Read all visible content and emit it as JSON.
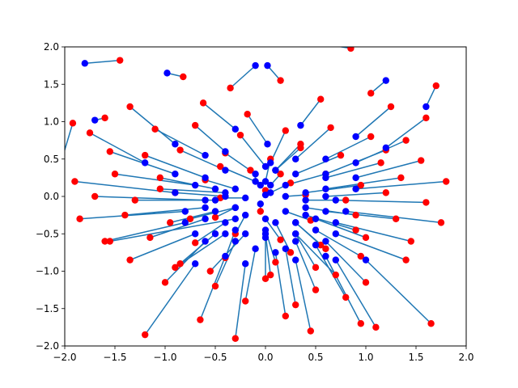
{
  "chart_data": {
    "type": "scatter",
    "title": "",
    "xlabel": "",
    "ylabel": "",
    "xlim": [
      -2.0,
      2.0
    ],
    "ylim": [
      -2.0,
      2.0
    ],
    "xticks": [
      -2.0,
      -1.5,
      -1.0,
      -0.5,
      0.0,
      0.5,
      1.0,
      1.5,
      2.0
    ],
    "yticks": [
      -2.0,
      -1.5,
      -1.0,
      -0.5,
      0.0,
      0.5,
      1.0,
      1.5,
      2.0
    ],
    "xtick_labels": [
      "−2.0",
      "−1.5",
      "−1.0",
      "−0.5",
      "0.0",
      "0.5",
      "1.0",
      "1.5",
      "2.0"
    ],
    "ytick_labels": [
      "−2.0",
      "−1.5",
      "−1.0",
      "−0.5",
      "0.0",
      "0.5",
      "1.0",
      "1.5",
      "2.0"
    ],
    "grid": false,
    "legend": "none",
    "colors": {
      "start": "#ff0000",
      "end": "#0000ff",
      "line": "#1f77b4"
    },
    "series": [
      {
        "x": [
          -1.45,
          -1.92,
          -1.6,
          -0.82,
          -0.35,
          0.85,
          1.7,
          1.05,
          0.15,
          -1.35,
          -0.62,
          -0.18,
          0.55,
          1.25,
          1.6,
          -1.75,
          -1.1,
          -0.7,
          -0.25,
          0.2,
          0.65,
          1.05,
          1.4,
          -1.55,
          -1.2,
          -0.85,
          -0.4,
          0.05,
          0.35,
          0.75,
          1.15,
          1.55,
          -1.9,
          -1.5,
          -1.05,
          -0.6,
          -0.15,
          0.25,
          0.6,
          0.95,
          1.35,
          1.8,
          -1.7,
          -1.3,
          -0.9,
          -0.45,
          0.0,
          0.4,
          0.8,
          1.2,
          1.6,
          -1.85,
          -1.4,
          -0.95,
          -0.5,
          -0.05,
          0.45,
          0.9,
          1.3,
          1.75,
          -1.6,
          -1.15,
          -0.7,
          -0.3,
          0.15,
          0.55,
          1.0,
          1.45,
          -1.35,
          -0.85,
          -0.4,
          0.1,
          0.5,
          0.95,
          1.4,
          -1.0,
          -0.5,
          0.0,
          0.5,
          1.0,
          -0.2,
          0.3,
          0.8,
          -0.65,
          0.2,
          0.95,
          -1.2,
          -0.3,
          0.45,
          1.1,
          1.65,
          -1.55,
          0.7,
          -0.9,
          0.05,
          0.6,
          -0.45,
          0.35,
          1.2,
          -0.75,
          0.9,
          -1.05,
          0.25,
          -0.55,
          0.15
        ],
        "y": [
          1.82,
          0.98,
          1.05,
          1.6,
          1.45,
          1.98,
          1.48,
          1.38,
          1.55,
          1.2,
          1.25,
          1.1,
          1.3,
          1.2,
          1.05,
          0.85,
          0.9,
          0.95,
          0.82,
          0.88,
          0.92,
          0.8,
          0.75,
          0.6,
          0.55,
          0.62,
          0.58,
          0.5,
          0.65,
          0.55,
          0.45,
          0.48,
          0.2,
          0.3,
          0.25,
          0.22,
          0.35,
          0.18,
          0.3,
          0.15,
          0.25,
          0.2,
          0.0,
          -0.05,
          0.05,
          -0.02,
          0.08,
          0.02,
          -0.05,
          0.05,
          -0.08,
          -0.3,
          -0.25,
          -0.35,
          -0.28,
          -0.2,
          -0.32,
          -0.25,
          -0.3,
          -0.35,
          -0.6,
          -0.55,
          -0.62,
          -0.5,
          -0.58,
          -0.65,
          -0.55,
          -0.6,
          -0.85,
          -0.9,
          -0.82,
          -0.88,
          -0.95,
          -0.8,
          -0.85,
          -1.15,
          -1.2,
          -1.1,
          -1.25,
          -1.15,
          -1.4,
          -1.45,
          -1.35,
          -1.65,
          -1.6,
          -1.7,
          -1.85,
          -1.9,
          -1.8,
          -1.75,
          -1.7,
          -0.6,
          -1.05,
          -0.95,
          -1.05,
          -0.7,
          0.4,
          0.7,
          0.62,
          -0.3,
          -0.45,
          0.1,
          -0.75,
          -1.0,
          0.3
        ],
        "color": "#ff0000"
      },
      {
        "x": [
          -1.8,
          -2.05,
          -1.7,
          -0.98,
          -0.1,
          0.3,
          1.6,
          1.2,
          0.02,
          -0.9,
          -0.3,
          0.02,
          0.35,
          0.9,
          1.2,
          -1.2,
          -0.6,
          -0.4,
          0.0,
          0.05,
          0.3,
          0.6,
          0.9,
          -0.9,
          -0.6,
          -0.4,
          -0.1,
          0.0,
          0.1,
          0.3,
          0.6,
          0.9,
          -0.9,
          -0.7,
          -0.5,
          -0.3,
          -0.05,
          0.05,
          0.2,
          0.4,
          0.6,
          0.9,
          -0.6,
          -0.5,
          -0.4,
          -0.2,
          0.0,
          0.2,
          0.4,
          0.6,
          0.7,
          -0.8,
          -0.6,
          -0.5,
          -0.3,
          -0.05,
          0.2,
          0.4,
          0.6,
          0.8,
          -0.8,
          -0.6,
          -0.4,
          -0.2,
          0.0,
          0.3,
          0.5,
          0.7,
          -0.7,
          -0.5,
          -0.3,
          0.0,
          0.3,
          0.5,
          0.7,
          -0.6,
          -0.3,
          0.0,
          0.3,
          0.6,
          -0.1,
          0.2,
          0.5,
          -0.4,
          0.1,
          0.6,
          -0.7,
          -0.2,
          0.3,
          0.7,
          1.0,
          -0.3,
          0.3,
          -0.4,
          0.0,
          0.3,
          -0.1,
          0.1,
          0.6,
          -0.3,
          0.4,
          -0.4,
          0.1,
          -0.2,
          0.05
        ],
        "y": [
          1.78,
          0.4,
          1.02,
          1.65,
          1.75,
          2.1,
          1.2,
          1.55,
          1.75,
          0.7,
          0.9,
          0.7,
          0.95,
          0.8,
          0.65,
          0.45,
          0.55,
          0.6,
          0.4,
          0.45,
          0.5,
          0.5,
          0.45,
          0.3,
          0.25,
          0.35,
          0.3,
          0.2,
          0.35,
          0.3,
          0.25,
          0.25,
          0.05,
          0.15,
          0.1,
          0.1,
          0.15,
          0.05,
          0.15,
          0.05,
          0.1,
          0.1,
          -0.05,
          -0.05,
          0.0,
          -0.02,
          0.02,
          0.0,
          -0.05,
          0.0,
          -0.05,
          -0.2,
          -0.15,
          -0.2,
          -0.15,
          -0.1,
          -0.2,
          -0.15,
          -0.2,
          -0.2,
          -0.35,
          -0.3,
          -0.35,
          -0.25,
          -0.3,
          -0.35,
          -0.3,
          -0.35,
          -0.5,
          -0.5,
          -0.45,
          -0.45,
          -0.5,
          -0.45,
          -0.5,
          -0.6,
          -0.6,
          -0.55,
          -0.6,
          -0.6,
          -0.7,
          -0.7,
          -0.65,
          -0.8,
          -0.75,
          -0.8,
          -0.9,
          -0.9,
          -0.85,
          -0.85,
          -0.85,
          -0.3,
          -0.5,
          -0.5,
          -0.5,
          -0.35,
          0.2,
          0.35,
          0.3,
          -0.15,
          -0.25,
          0.05,
          -0.35,
          -0.5,
          0.15
        ],
        "color": "#0000ff"
      }
    ]
  }
}
